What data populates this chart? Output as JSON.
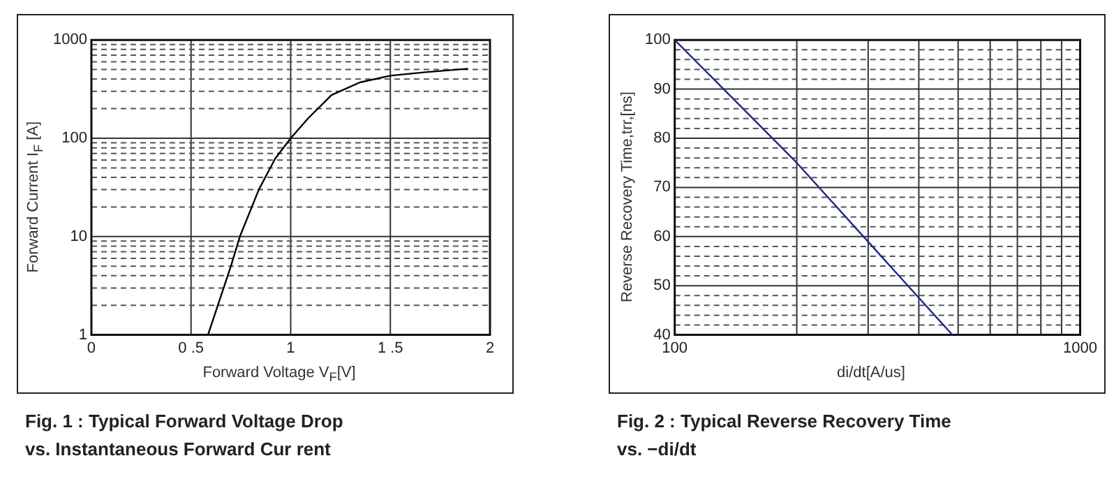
{
  "chart_data": [
    {
      "type": "line",
      "title": "Fig.  1 : Typical Forward Voltage Drop\nvs. Instantaneous Forward Cur  rent",
      "xlabel": "Forward Voltage V$_{F}$[V]",
      "ylabel": "Forward Current I$_{F}$ [A]",
      "x": [
        0.585,
        0.7,
        0.745,
        0.84,
        0.922,
        1.0,
        1.088,
        1.205,
        1.347,
        1.5,
        1.677,
        1.89
      ],
      "values": [
        1,
        5,
        10,
        30,
        62,
        100,
        160,
        275,
        370,
        433,
        470,
        510
      ],
      "color": "#000000",
      "xlim": [
        0,
        2
      ],
      "xticks": [
        0,
        {
          "value": 0.5,
          "label": "0 .5"
        },
        1,
        {
          "value": 1.5,
          "label": "1 .5"
        },
        2
      ],
      "ylim": [
        1,
        1000
      ],
      "yticks": [
        1,
        {
          "value": 2,
          "label": null
        },
        {
          "value": 3,
          "label": null
        },
        {
          "value": 4,
          "label": null
        },
        {
          "value": 5,
          "label": null
        },
        {
          "value": 6,
          "label": null
        },
        {
          "value": 7,
          "label": null
        },
        {
          "value": 8,
          "label": null
        },
        {
          "value": 9,
          "label": null
        },
        10,
        {
          "value": 20,
          "label": null
        },
        {
          "value": 30,
          "label": null
        },
        {
          "value": 40,
          "label": null
        },
        {
          "value": 50,
          "label": null
        },
        {
          "value": 60,
          "label": null
        },
        {
          "value": 70,
          "label": null
        },
        {
          "value": 80,
          "label": null
        },
        {
          "value": 90,
          "label": null
        },
        100,
        {
          "value": 200,
          "label": null
        },
        {
          "value": 300,
          "label": null
        },
        {
          "value": 400,
          "label": null
        },
        {
          "value": 500,
          "label": null
        },
        {
          "value": 600,
          "label": null
        },
        {
          "value": 700,
          "label": null
        },
        {
          "value": 800,
          "label": null
        },
        {
          "value": 900,
          "label": null
        },
        1000
      ],
      "log": "y",
      "grid": true
    },
    {
      "type": "line",
      "title": "Fig.  2 : Typical Reverse Recovery Time\nvs.  −di/dt",
      "xlabel": "di/dt[A/us]",
      "ylabel": "Reverse Recovery Time,trr,[ns]",
      "x": [
        100,
        200,
        484
      ],
      "values": [
        100,
        75,
        40
      ],
      "color": "#1f2a8a",
      "xlim": [
        100,
        1000
      ],
      "xticks": [
        100,
        {
          "value": 200,
          "label": null
        },
        {
          "value": 300,
          "label": null
        },
        {
          "value": 400,
          "label": null
        },
        {
          "value": 500,
          "label": null
        },
        {
          "value": 600,
          "label": null
        },
        {
          "value": 700,
          "label": null
        },
        {
          "value": 800,
          "label": null
        },
        {
          "value": 900,
          "label": null
        },
        1000
      ],
      "ylim": [
        40,
        100
      ],
      "yticks": [
        40,
        {
          "value": 42,
          "label": null
        },
        {
          "value": 44,
          "label": null
        },
        {
          "value": 46,
          "label": null
        },
        {
          "value": 48,
          "label": null
        },
        50,
        {
          "value": 52,
          "label": null
        },
        {
          "value": 54,
          "label": null
        },
        {
          "value": 56,
          "label": null
        },
        {
          "value": 58,
          "label": null
        },
        60,
        {
          "value": 62,
          "label": null
        },
        {
          "value": 64,
          "label": null
        },
        {
          "value": 66,
          "label": null
        },
        {
          "value": 68,
          "label": null
        },
        70,
        {
          "value": 72,
          "label": null
        },
        {
          "value": 74,
          "label": null
        },
        {
          "value": 76,
          "label": null
        },
        {
          "value": 78,
          "label": null
        },
        80,
        {
          "value": 82,
          "label": null
        },
        {
          "value": 84,
          "label": null
        },
        {
          "value": 86,
          "label": null
        },
        {
          "value": 88,
          "label": null
        },
        90,
        {
          "value": 92,
          "label": null
        },
        {
          "value": 94,
          "label": null
        },
        {
          "value": 96,
          "label": null
        },
        {
          "value": 98,
          "label": null
        },
        100
      ],
      "log": "x",
      "grid": true
    }
  ]
}
